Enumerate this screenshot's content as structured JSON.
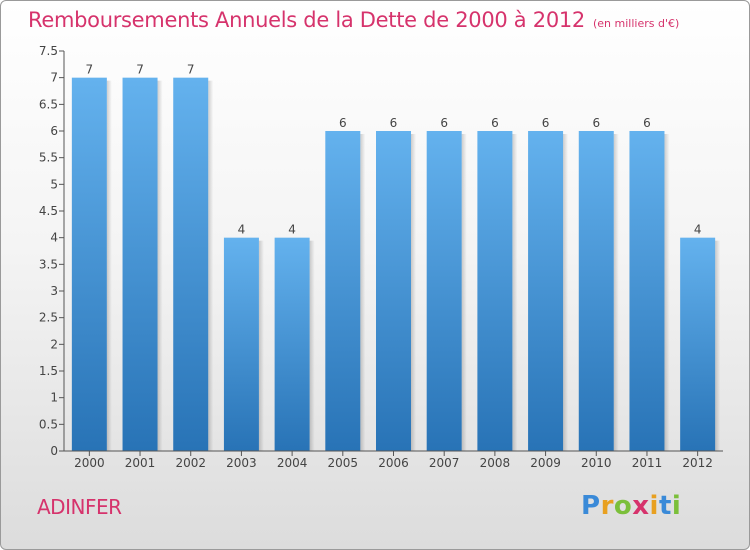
{
  "header": {
    "title": "Remboursements Annuels de la Dette de 2000 à 2012",
    "unit": "(en milliers d'€)"
  },
  "commune": "ADINFER",
  "logo": {
    "text": "Proxiti"
  },
  "colors": {
    "bar_top": "#64b2ee",
    "bar_bottom": "#2873b6",
    "accent": "#d6336c"
  },
  "chart_data": {
    "type": "bar",
    "title": "Remboursements Annuels de la Dette de 2000 à 2012",
    "categories": [
      "2000",
      "2001",
      "2002",
      "2003",
      "2004",
      "2005",
      "2006",
      "2007",
      "2008",
      "2009",
      "2010",
      "2011",
      "2012"
    ],
    "values": [
      7,
      7,
      7,
      4,
      4,
      6,
      6,
      6,
      6,
      6,
      6,
      6,
      4
    ],
    "ylim": [
      0,
      7.5
    ],
    "yticks": [
      "0",
      "0.5",
      "1",
      "1.5",
      "2",
      "2.5",
      "3",
      "3.5",
      "4",
      "4.5",
      "5",
      "5.5",
      "6",
      "6.5",
      "7",
      "7.5"
    ],
    "grid": false
  }
}
